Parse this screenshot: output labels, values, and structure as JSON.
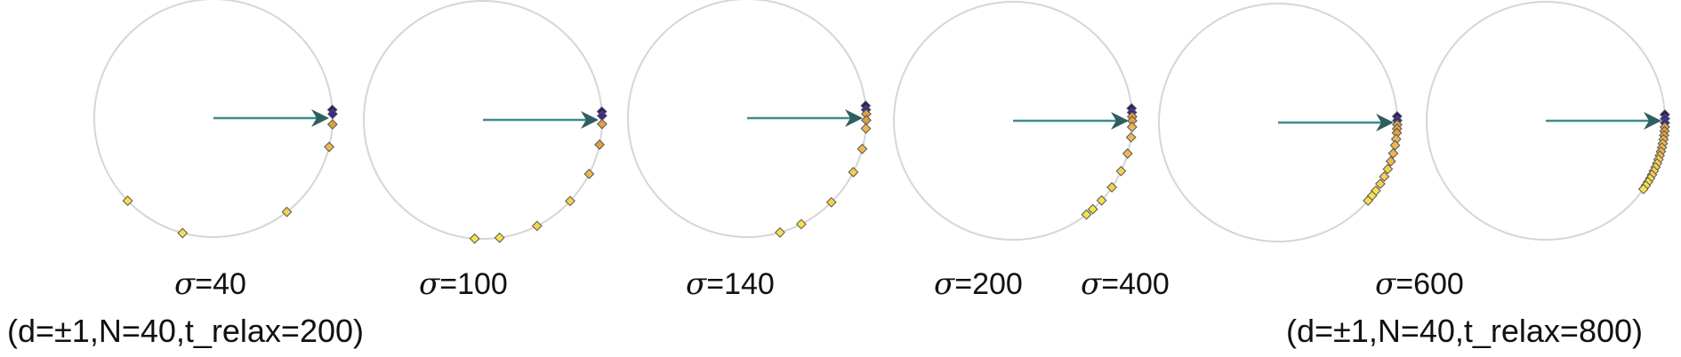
{
  "colors": {
    "circle": "#d6d6d6",
    "arrow": "#3b8c8c",
    "arrowhead": "#2f5f5f",
    "marker_stroke": "#555555",
    "marker_colors": [
      "#2a1a6e",
      "#3a2a8a",
      "#e0a040",
      "#f0b650",
      "#f5d050",
      "#f7e04f"
    ]
  },
  "sigma_symbol": "σ",
  "panels": [
    {
      "sigma_label": "=40",
      "params_label": "(d=±1,N=40,t_relax=200)",
      "points": [
        [
          -4,
          0.0,
          0
        ],
        [
          -2,
          0.06,
          1
        ],
        [
          3,
          0.18,
          2
        ],
        [
          14,
          0.35,
          3
        ],
        [
          52,
          0.86,
          4
        ],
        [
          105,
          1.0,
          5
        ],
        [
          136,
          1.0,
          5
        ]
      ]
    },
    {
      "sigma_label": "=100",
      "params_label": "",
      "points": [
        [
          -4,
          0.0,
          0
        ],
        [
          -2,
          0.04,
          1
        ],
        [
          2,
          0.14,
          2
        ],
        [
          12,
          0.3,
          2
        ],
        [
          27,
          0.48,
          3
        ],
        [
          43,
          0.66,
          4
        ],
        [
          63,
          0.86,
          4
        ],
        [
          82,
          1.0,
          5
        ],
        [
          94,
          1.0,
          5
        ]
      ]
    },
    {
      "sigma_label": "=140",
      "params_label": "",
      "points": [
        [
          -6,
          0.0,
          0
        ],
        [
          -4,
          0.02,
          1
        ],
        [
          -2,
          0.08,
          2
        ],
        [
          1,
          0.16,
          2
        ],
        [
          5,
          0.26,
          3
        ],
        [
          15,
          0.42,
          3
        ],
        [
          27,
          0.6,
          4
        ],
        [
          45,
          0.78,
          4
        ],
        [
          63,
          0.92,
          5
        ],
        [
          74,
          1.0,
          5
        ]
      ]
    },
    {
      "sigma_label": "=200",
      "params_label": "",
      "points": [
        [
          -6,
          0.0,
          0
        ],
        [
          -4,
          0.02,
          1
        ],
        [
          -2,
          0.06,
          2
        ],
        [
          0,
          0.12,
          2
        ],
        [
          3,
          0.2,
          3
        ],
        [
          8,
          0.3,
          3
        ],
        [
          16,
          0.42,
          3
        ],
        [
          25,
          0.56,
          4
        ],
        [
          34,
          0.7,
          4
        ],
        [
          42,
          0.84,
          5
        ],
        [
          48,
          0.94,
          5
        ],
        [
          52,
          1.0,
          5
        ]
      ]
    },
    {
      "sigma_label": "=400",
      "params_label": "",
      "points": [
        [
          -3,
          0.0,
          0
        ],
        [
          -1,
          0.02,
          1
        ],
        [
          1,
          0.06,
          2
        ],
        [
          3,
          0.1,
          2
        ],
        [
          5,
          0.14,
          2
        ],
        [
          8,
          0.2,
          3
        ],
        [
          11,
          0.26,
          3
        ],
        [
          15,
          0.34,
          3
        ],
        [
          19,
          0.44,
          3
        ],
        [
          23,
          0.52,
          4
        ],
        [
          27,
          0.62,
          4
        ],
        [
          31,
          0.72,
          4
        ],
        [
          35,
          0.82,
          5
        ],
        [
          38,
          0.92,
          5
        ],
        [
          41,
          1.0,
          5
        ]
      ]
    },
    {
      "sigma_label": "=600",
      "params_label": "(d=±1,N=40,t_relax=800)",
      "points": [
        [
          -3,
          0.0,
          0
        ],
        [
          -1,
          0.02,
          1
        ],
        [
          1,
          0.05,
          1
        ],
        [
          3,
          0.09,
          2
        ],
        [
          5,
          0.13,
          2
        ],
        [
          7,
          0.17,
          2
        ],
        [
          9,
          0.22,
          3
        ],
        [
          11,
          0.27,
          3
        ],
        [
          13,
          0.32,
          3
        ],
        [
          15,
          0.38,
          3
        ],
        [
          17,
          0.44,
          3
        ],
        [
          19,
          0.5,
          4
        ],
        [
          21,
          0.56,
          4
        ],
        [
          23,
          0.62,
          4
        ],
        [
          25,
          0.68,
          4
        ],
        [
          27,
          0.75,
          4
        ],
        [
          29,
          0.82,
          5
        ],
        [
          31,
          0.89,
          5
        ],
        [
          33,
          0.95,
          5
        ],
        [
          35,
          1.0,
          5
        ]
      ]
    }
  ]
}
